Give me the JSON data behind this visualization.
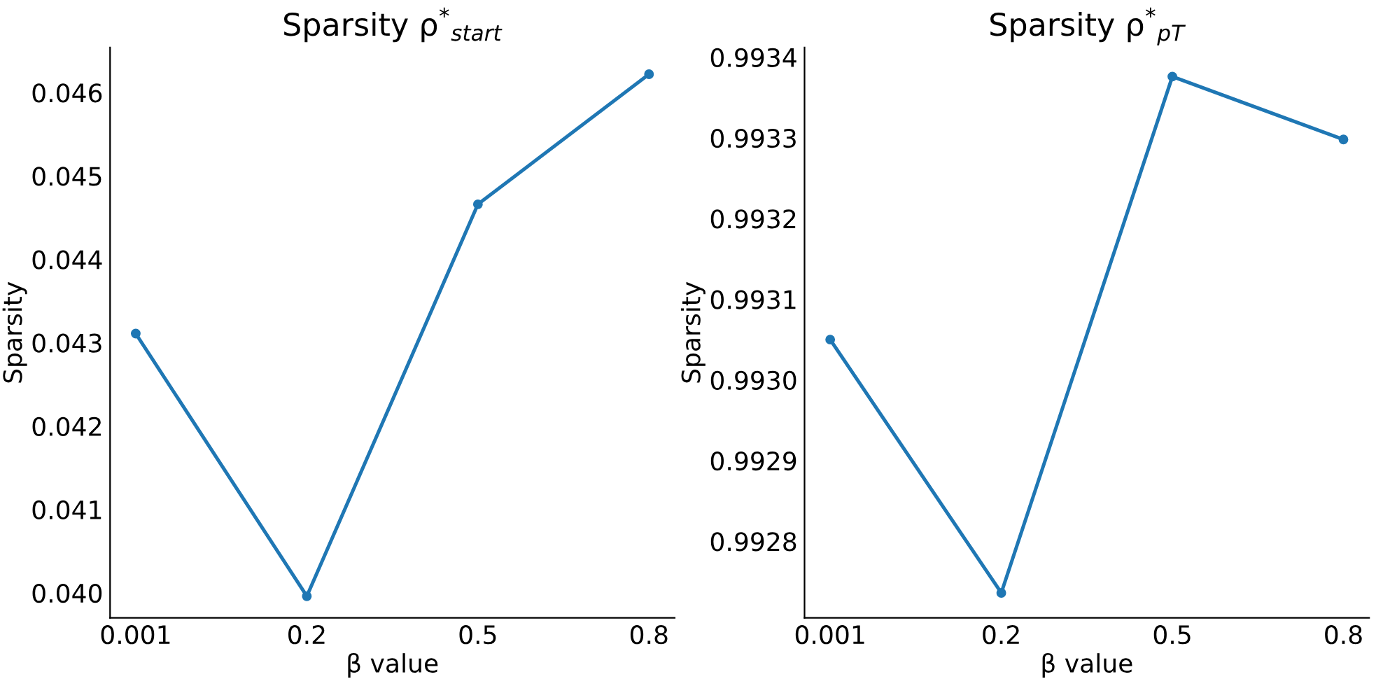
{
  "chart_data": [
    {
      "type": "line",
      "title": "Sparsity ρ$^{*}$$_{start}$",
      "xlabel": "β value",
      "ylabel": "Sparsity",
      "categories": [
        "0.001",
        "0.2",
        "0.5",
        "0.8"
      ],
      "series": [
        {
          "color": "#1f77b4",
          "values": [
            0.04311,
            0.03996,
            0.04466,
            0.04622
          ]
        }
      ],
      "ylim": [
        0.0397,
        0.04654
      ],
      "yticks": [
        {
          "value": 0.04,
          "label": "0.040"
        },
        0.041,
        0.042,
        0.043,
        0.044,
        0.045,
        0.046
      ],
      "marker": "circle",
      "line_style": "solid",
      "grid": false
    },
    {
      "type": "line",
      "title": "Sparsity ρ$^{*}$$_{pT}$",
      "xlabel": "β value",
      "ylabel": "Sparsity",
      "categories": [
        "0.001",
        "0.2",
        "0.5",
        "0.8"
      ],
      "series": [
        {
          "color": "#1f77b4",
          "values": [
            0.99305,
            0.992736,
            0.993376,
            0.993298
          ]
        }
      ],
      "ylim": [
        0.992705,
        0.993412
      ],
      "yticks": [
        0.9928,
        0.9929,
        {
          "value": 0.993,
          "label": "0.9930"
        },
        0.9931,
        0.9932,
        0.9933,
        0.9934
      ],
      "marker": "circle",
      "line_style": "solid",
      "grid": false
    }
  ]
}
